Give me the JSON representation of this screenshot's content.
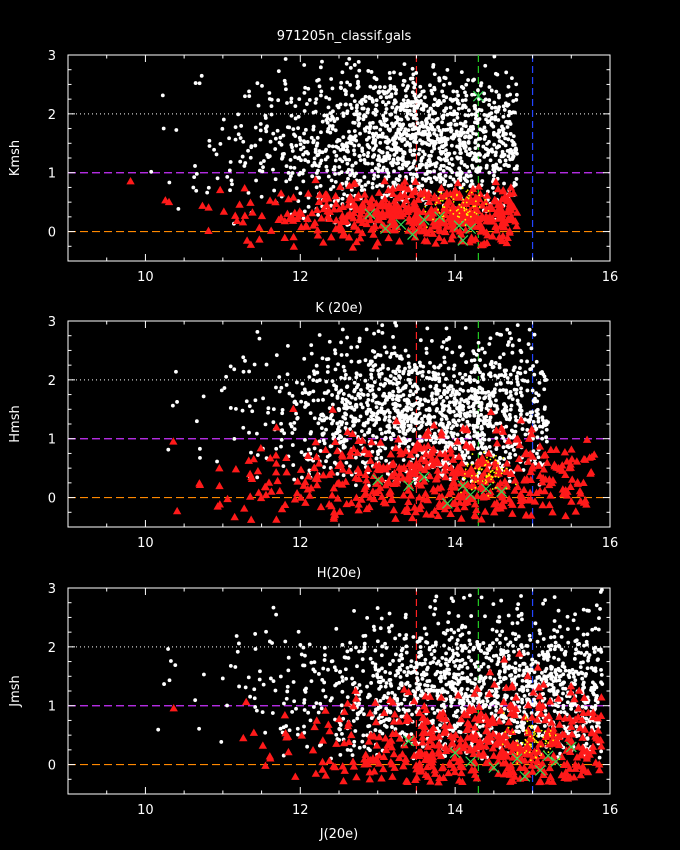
{
  "title": "971205n_classif.gals",
  "colors": {
    "background": "#000000",
    "axes": "#ffffff",
    "white_points": "#ffffff",
    "red_triangles": "#ff1a1a",
    "yellow_points": "#ffff00",
    "green_crosses": "#33dd55",
    "line_zero": "#ff8800",
    "line_one": "#cc33ff",
    "line_two": "#cccccc",
    "vline_red": "#ff2222",
    "vline_green": "#22cc22",
    "vline_blue": "#2244ff"
  },
  "chart_data": [
    {
      "type": "scatter",
      "title": "971205n_classif.gals",
      "xlabel": "K (20e)",
      "ylabel": "Kmsh",
      "xlim": [
        9,
        16
      ],
      "ylim": [
        -0.5,
        3
      ],
      "xticks": [
        "10",
        "12",
        "14",
        "16"
      ],
      "yticks": [
        "0",
        "1",
        "2",
        "3"
      ],
      "hlines": [
        {
          "y": 0,
          "style": "dashed",
          "color": "line_zero"
        },
        {
          "y": 1,
          "style": "dashed",
          "color": "line_one"
        },
        {
          "y": 2,
          "style": "dotted",
          "color": "line_two"
        }
      ],
      "vlines": [
        {
          "x": 13.5,
          "style": "dashed",
          "color": "vline_red"
        },
        {
          "x": 14.3,
          "style": "dashed",
          "color": "vline_green"
        },
        {
          "x": 15.0,
          "style": "dashed",
          "color": "vline_blue"
        }
      ],
      "series": [
        {
          "marker": "dot",
          "color": "white_points",
          "count": 1500,
          "x_range": [
            9.7,
            14.8
          ],
          "x_center": 13.6,
          "y_range": [
            0.1,
            3.0
          ],
          "y_center": 1.5
        },
        {
          "marker": "triangle",
          "color": "red_triangles",
          "count": 520,
          "x_range": [
            9.3,
            14.8
          ],
          "x_center": 13.9,
          "y_range": [
            -0.3,
            0.9
          ],
          "y_center": 0.3
        },
        {
          "marker": "dot",
          "color": "yellow_points",
          "count": 70,
          "x_range": [
            13.6,
            14.6
          ],
          "x_center": 14.0,
          "y_range": [
            0.0,
            0.8
          ],
          "y_center": 0.4
        },
        {
          "marker": "cross",
          "color": "green_crosses",
          "count": 10,
          "points": [
            [
              13.1,
              0.05
            ],
            [
              13.3,
              0.12
            ],
            [
              13.6,
              0.2
            ],
            [
              14.1,
              -0.15
            ],
            [
              14.3,
              2.3
            ],
            [
              13.8,
              0.25
            ],
            [
              14.05,
              0.1
            ],
            [
              13.45,
              -0.05
            ],
            [
              12.9,
              0.3
            ],
            [
              14.2,
              0.05
            ]
          ]
        }
      ]
    },
    {
      "type": "scatter",
      "xlabel": "H(20e)",
      "ylabel": "Hmsh",
      "xlim": [
        9,
        16
      ],
      "ylim": [
        -0.5,
        3
      ],
      "xticks": [
        "10",
        "12",
        "14",
        "16"
      ],
      "yticks": [
        "0",
        "1",
        "2",
        "3"
      ],
      "hlines": [
        {
          "y": 0,
          "style": "dashed",
          "color": "line_zero"
        },
        {
          "y": 1,
          "style": "dashed",
          "color": "line_one"
        },
        {
          "y": 2,
          "style": "dotted",
          "color": "line_two"
        }
      ],
      "vlines": [
        {
          "x": 13.5,
          "style": "dashed",
          "color": "vline_red"
        },
        {
          "x": 14.3,
          "style": "dashed",
          "color": "vline_green"
        },
        {
          "x": 15.0,
          "style": "dashed",
          "color": "vline_blue"
        }
      ],
      "series": [
        {
          "marker": "dot",
          "color": "white_points",
          "count": 1500,
          "x_range": [
            10.1,
            15.2
          ],
          "x_center": 13.8,
          "y_range": [
            0.2,
            3.0
          ],
          "y_center": 1.4
        },
        {
          "marker": "triangle",
          "color": "red_triangles",
          "count": 520,
          "x_range": [
            9.4,
            15.8
          ],
          "x_center": 14.0,
          "y_range": [
            -0.4,
            1.6
          ],
          "y_center": 0.25
        },
        {
          "marker": "dot",
          "color": "yellow_points",
          "count": 70,
          "x_range": [
            14.0,
            14.8
          ],
          "x_center": 14.4,
          "y_range": [
            0.0,
            0.8
          ],
          "y_center": 0.4
        },
        {
          "marker": "cross",
          "color": "green_crosses",
          "count": 8,
          "points": [
            [
              13.0,
              0.3
            ],
            [
              13.4,
              0.2
            ],
            [
              14.2,
              0.05
            ],
            [
              14.4,
              0.15
            ],
            [
              13.9,
              -0.1
            ],
            [
              14.6,
              0.1
            ],
            [
              13.6,
              0.35
            ],
            [
              14.1,
              0.2
            ]
          ]
        }
      ]
    },
    {
      "type": "scatter",
      "xlabel": "J(20e)",
      "ylabel": "Jmsh",
      "xlim": [
        9,
        16
      ],
      "ylim": [
        -0.5,
        3
      ],
      "xticks": [
        "10",
        "12",
        "14",
        "16"
      ],
      "yticks": [
        "0",
        "1",
        "2",
        "3"
      ],
      "hlines": [
        {
          "y": 0,
          "style": "dashed",
          "color": "line_zero"
        },
        {
          "y": 1,
          "style": "dashed",
          "color": "line_one"
        },
        {
          "y": 2,
          "style": "dotted",
          "color": "line_two"
        }
      ],
      "vlines": [
        {
          "x": 13.5,
          "style": "dashed",
          "color": "vline_red"
        },
        {
          "x": 14.3,
          "style": "dashed",
          "color": "vline_green"
        },
        {
          "x": 15.0,
          "style": "dashed",
          "color": "vline_blue"
        }
      ],
      "series": [
        {
          "marker": "dot",
          "color": "white_points",
          "count": 1500,
          "x_range": [
            9.3,
            15.9
          ],
          "x_center": 14.7,
          "y_range": [
            0.1,
            3.0
          ],
          "y_center": 1.2
        },
        {
          "marker": "triangle",
          "color": "red_triangles",
          "count": 520,
          "x_range": [
            10.1,
            15.9
          ],
          "x_center": 14.6,
          "y_range": [
            -0.3,
            2.3
          ],
          "y_center": 0.15
        },
        {
          "marker": "dot",
          "color": "yellow_points",
          "count": 70,
          "x_range": [
            14.6,
            15.4
          ],
          "x_center": 15.0,
          "y_range": [
            0.0,
            0.9
          ],
          "y_center": 0.45
        },
        {
          "marker": "cross",
          "color": "green_crosses",
          "count": 10,
          "points": [
            [
              13.4,
              0.4
            ],
            [
              14.2,
              0.05
            ],
            [
              14.5,
              -0.05
            ],
            [
              14.8,
              0.1
            ],
            [
              15.1,
              -0.1
            ],
            [
              15.3,
              0.05
            ],
            [
              14.9,
              -0.2
            ],
            [
              15.5,
              0.3
            ],
            [
              14.0,
              0.2
            ],
            [
              15.2,
              0.15
            ]
          ]
        }
      ]
    }
  ]
}
